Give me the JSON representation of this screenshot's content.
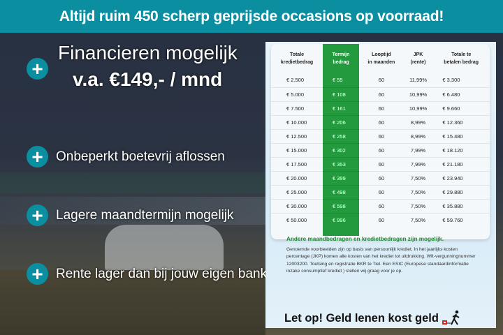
{
  "header": {
    "title": "Altijd ruim 450 scherp geprijsde occasions op voorraad!"
  },
  "colors": {
    "accent": "#0b8fa0",
    "green": "#229a3d",
    "background": "#283142"
  },
  "features": {
    "financing": {
      "line1": "Financieren mogelijk",
      "line2": "v.a. €149,- / mnd",
      "icon": "plus-icon"
    },
    "items": [
      {
        "label": "Onbeperkt boetevrij aflossen",
        "icon": "plus-icon"
      },
      {
        "label": "Lagere maandtermijn mogelijk",
        "icon": "plus-icon"
      },
      {
        "label": "Rente lager dan bij jouw eigen bank",
        "icon": "plus-icon"
      }
    ]
  },
  "table": {
    "headers": [
      [
        "Totale",
        "kredietbedrag"
      ],
      [
        "Termijn",
        "bedrag"
      ],
      [
        "Looptijd",
        "in maanden"
      ],
      [
        "JPK",
        "(rente)"
      ],
      [
        "Totale te",
        "betalen bedrag"
      ]
    ],
    "rows": [
      [
        "€ 2.500",
        "€ 55",
        "60",
        "11,99%",
        "€ 3.300"
      ],
      [
        "€ 5.000",
        "€ 108",
        "60",
        "10,99%",
        "€ 6.480"
      ],
      [
        "€ 7.500",
        "€ 161",
        "60",
        "10,99%",
        "€ 9.660"
      ],
      [
        "€ 10.000",
        "€ 206",
        "60",
        "8,99%",
        "€ 12.360"
      ],
      [
        "€ 12.500",
        "€ 258",
        "60",
        "8,99%",
        "€ 15.480"
      ],
      [
        "€ 15.000",
        "€ 302",
        "60",
        "7,99%",
        "€ 18.120"
      ],
      [
        "€ 17.500",
        "€ 353",
        "60",
        "7,99%",
        "€ 21.180"
      ],
      [
        "€ 20.000",
        "€ 399",
        "60",
        "7,50%",
        "€ 23.940"
      ],
      [
        "€ 25.000",
        "€ 498",
        "60",
        "7,50%",
        "€ 29.880"
      ],
      [
        "€ 30.000",
        "€ 598",
        "60",
        "7,50%",
        "€ 35.880"
      ],
      [
        "€ 50.000",
        "€ 996",
        "60",
        "7,50%",
        "€ 59.760"
      ]
    ]
  },
  "note": {
    "title": "Andere maandbedragen en kredietbedragen zijn mogelijk.",
    "body": "Genoemde voorbeelden zijn op basis van persoonlijk krediet. In het jaarlijks kosten percentage (JKP) komen alle kosten van het krediet tot uitdrukking. Wft-vergunningnummer 12003200. Toetsing en registratie BKR te Tiel. Een ESIC (Europese standaardinformatie inzake consumptief krediet ) stellen wij graag voor je op."
  },
  "warning": {
    "text": "Let op! Geld lenen kost geld",
    "icon": "running-person-icon"
  }
}
